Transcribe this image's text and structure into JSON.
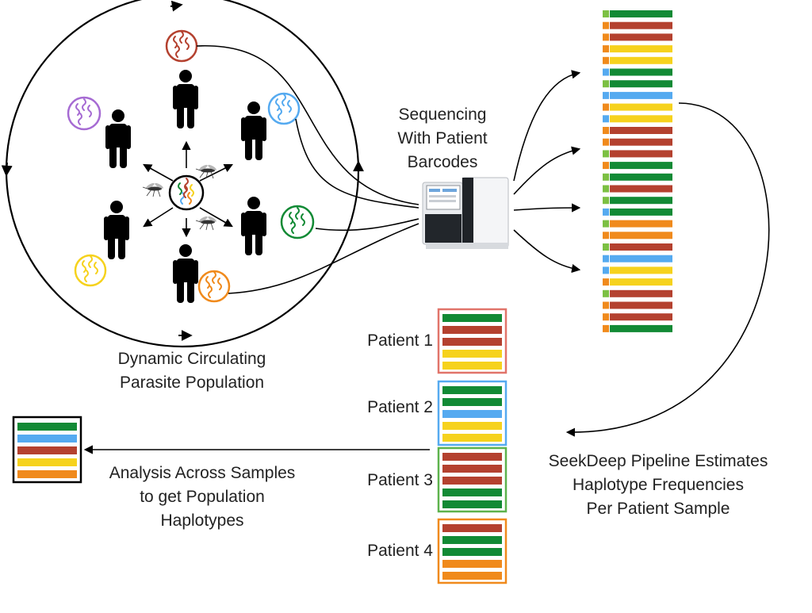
{
  "labels": {
    "sequencing": [
      "Sequencing",
      "With Patient",
      "Barcodes"
    ],
    "population": [
      "Dynamic Circulating",
      "Parasite Population"
    ],
    "pipeline": [
      "SeekDeep Pipeline Estimates",
      "Haplotype Frequencies",
      "Per Patient Sample"
    ],
    "analysis": [
      "Analysis Across Samples",
      "to get Population",
      "Haplotypes"
    ]
  },
  "colors": {
    "green": "#128a35",
    "red": "#b4412f",
    "yellow": "#f6d21d",
    "blue": "#55aaf0",
    "orange": "#f08a1c",
    "lightgreen": "#7cc043",
    "purple": "#a66bd3"
  },
  "patients": [
    {
      "label": "Patient 1",
      "border": "#e1746a",
      "bars": [
        "green",
        "red",
        "red",
        "yellow",
        "yellow"
      ]
    },
    {
      "label": "Patient 2",
      "border": "#55aaf0",
      "bars": [
        "green",
        "green",
        "blue",
        "yellow",
        "yellow"
      ]
    },
    {
      "label": "Patient 3",
      "border": "#5db34d",
      "bars": [
        "red",
        "red",
        "red",
        "green",
        "green"
      ]
    },
    {
      "label": "Patient 4",
      "border": "#f08a1c",
      "bars": [
        "red",
        "green",
        "green",
        "orange",
        "orange"
      ]
    }
  ],
  "population_haplotypes": [
    "green",
    "blue",
    "red",
    "yellow",
    "orange"
  ],
  "reads": [
    [
      "lightgreen",
      "green"
    ],
    [
      "orange",
      "red"
    ],
    [
      "orange",
      "red"
    ],
    [
      "orange",
      "yellow"
    ],
    [
      "orange",
      "yellow"
    ],
    [
      "blue",
      "green"
    ],
    [
      "lightgreen",
      "green"
    ],
    [
      "blue",
      "blue"
    ],
    [
      "orange",
      "yellow"
    ],
    [
      "blue",
      "yellow"
    ],
    [
      "orange",
      "red"
    ],
    [
      "orange",
      "red"
    ],
    [
      "lightgreen",
      "red"
    ],
    [
      "orange",
      "green"
    ],
    [
      "lightgreen",
      "green"
    ],
    [
      "lightgreen",
      "red"
    ],
    [
      "lightgreen",
      "green"
    ],
    [
      "blue",
      "green"
    ],
    [
      "lightgreen",
      "orange"
    ],
    [
      "orange",
      "orange"
    ],
    [
      "lightgreen",
      "red"
    ],
    [
      "blue",
      "blue"
    ],
    [
      "blue",
      "yellow"
    ],
    [
      "orange",
      "yellow"
    ],
    [
      "lightgreen",
      "red"
    ],
    [
      "orange",
      "red"
    ],
    [
      "orange",
      "red"
    ],
    [
      "orange",
      "green"
    ]
  ],
  "hosts": [
    {
      "name": "host-top",
      "sample": "red"
    },
    {
      "name": "host-upper-left",
      "sample": "purple"
    },
    {
      "name": "host-upper-right",
      "sample": "blue"
    },
    {
      "name": "host-lower-left",
      "sample": "yellow"
    },
    {
      "name": "host-lower-right",
      "sample": "green"
    },
    {
      "name": "host-bottom",
      "sample": "orange"
    }
  ]
}
